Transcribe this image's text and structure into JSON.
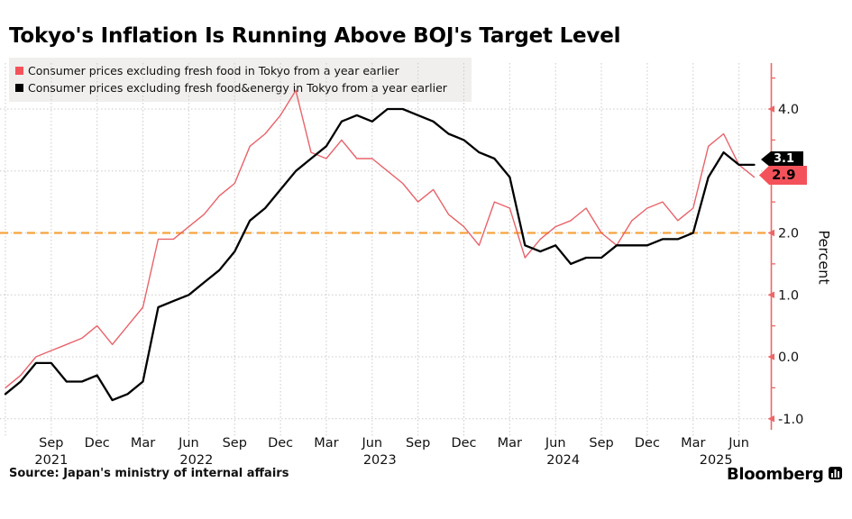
{
  "title": "Tokyo's Inflation Is Running Above BOJ's Target Level",
  "source_note": "Source: Japan's ministry of internal affairs",
  "brand": "Bloomberg",
  "legend": [
    {
      "label": "Consumer prices excluding fresh food in Tokyo from a year earlier",
      "color": "#f4525a"
    },
    {
      "label": "Consumer prices excluding fresh food&energy in Tokyo from a year earlier",
      "color": "#000000"
    }
  ],
  "chart_data": {
    "type": "line",
    "title": "Tokyo's Inflation Is Running Above BOJ's Target Level",
    "xlabel": "",
    "ylabel": "Percent",
    "ylim": [
      -1.2,
      4.6
    ],
    "yticks": [
      -1.0,
      0.0,
      1.0,
      2.0,
      3.0,
      4.0
    ],
    "grid": true,
    "grid_color": "#ccc9c7",
    "axis_color": "#ee6666",
    "target_line": {
      "value": 2.0,
      "color": "#f6a33c",
      "style": "dashed",
      "meaning": "BOJ target level"
    },
    "x_start_month": "2021-06",
    "x_end_month": "2025-07",
    "interval": "monthly",
    "xtick_months": [
      "Sep",
      "Dec",
      "Mar",
      "Jun",
      "Sep",
      "Dec",
      "Mar",
      "Jun",
      "Sep",
      "Dec",
      "Mar",
      "Jun",
      "Sep",
      "Dec",
      "Mar",
      "Jun"
    ],
    "xtick_years": [
      {
        "label": "2021",
        "m": 3
      },
      {
        "label": "2022",
        "m": 12.5
      },
      {
        "label": "2023",
        "m": 24.5
      },
      {
        "label": "2024",
        "m": 36.5
      },
      {
        "label": "2025",
        "m": 46.5
      }
    ],
    "series": [
      {
        "name": "Consumer prices excluding fresh food in Tokyo from a year earlier",
        "color": "#e8636a",
        "end_label": "2.9",
        "end_label_bg": "#f4525a",
        "values": [
          -0.5,
          -0.3,
          0.0,
          0.1,
          0.2,
          0.3,
          0.5,
          0.2,
          0.5,
          0.8,
          1.9,
          1.9,
          2.1,
          2.3,
          2.6,
          2.8,
          3.4,
          3.6,
          3.9,
          4.3,
          3.3,
          3.2,
          3.5,
          3.2,
          3.2,
          3.0,
          2.8,
          2.5,
          2.7,
          2.3,
          2.1,
          1.8,
          2.5,
          2.4,
          1.6,
          1.9,
          2.1,
          2.2,
          2.4,
          2.0,
          1.8,
          2.2,
          2.4,
          2.5,
          2.2,
          2.4,
          3.4,
          3.6,
          3.1,
          2.9
        ]
      },
      {
        "name": "Consumer prices excluding fresh food&energy in Tokyo from a year earlier",
        "color": "#000000",
        "end_label": "3.1",
        "end_label_bg": "#000000",
        "values": [
          -0.6,
          -0.4,
          -0.1,
          -0.1,
          -0.4,
          -0.4,
          -0.3,
          -0.7,
          -0.6,
          -0.4,
          0.8,
          0.9,
          1.0,
          1.2,
          1.4,
          1.7,
          2.2,
          2.4,
          2.7,
          3.0,
          3.2,
          3.4,
          3.8,
          3.9,
          3.8,
          4.0,
          4.0,
          3.9,
          3.8,
          3.6,
          3.5,
          3.3,
          3.2,
          2.9,
          1.8,
          1.7,
          1.8,
          1.5,
          1.6,
          1.6,
          1.8,
          1.8,
          1.8,
          1.9,
          1.9,
          2.0,
          2.9,
          3.3,
          3.1,
          3.1
        ]
      }
    ]
  }
}
